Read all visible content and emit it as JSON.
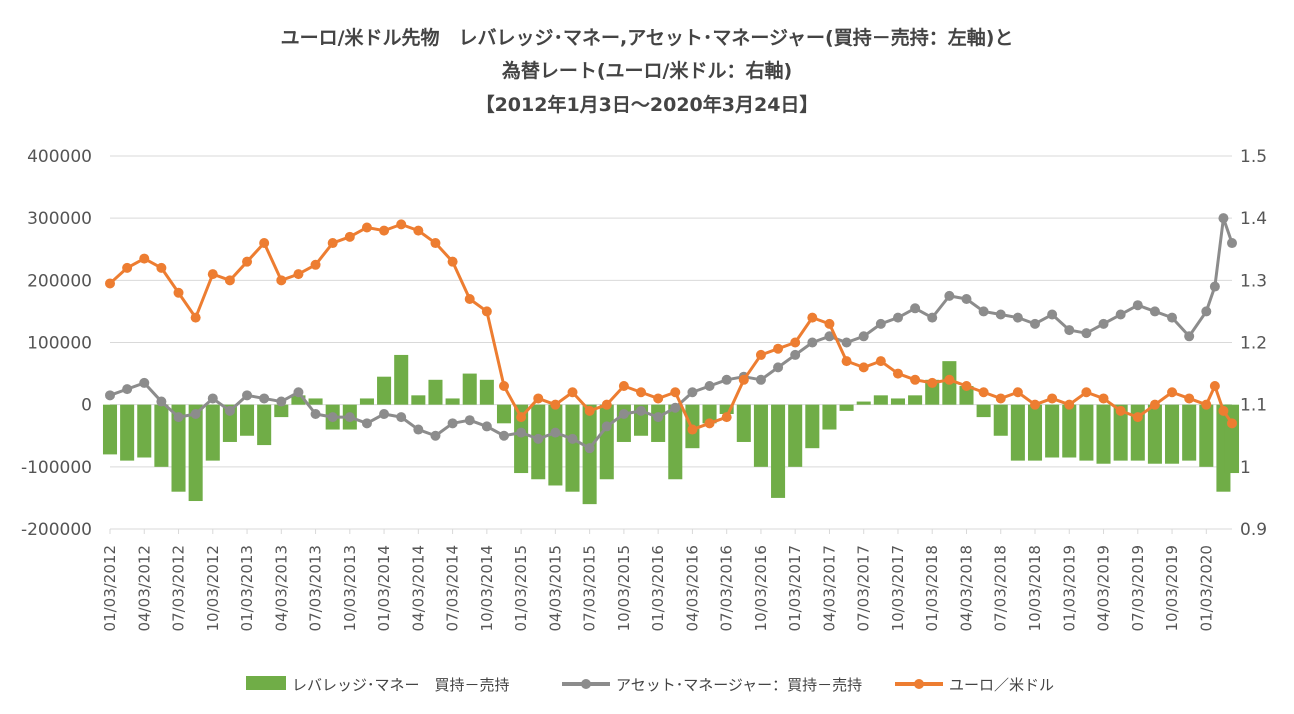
{
  "chart_data": {
    "type": "bar+line",
    "title_lines": [
      "ユーロ/米ドル先物　レバレッジ･マネー,アセット･マネージャー(買持－売持：左軸)と",
      "為替レート(ユーロ/米ドル：右軸)",
      "【2012年1月3日～2020年3月24日】"
    ],
    "y_left": {
      "min": -200000,
      "max": 400000,
      "ticks": [
        "400000",
        "300000",
        "200000",
        "100000",
        "0",
        "-100000",
        "-200000"
      ]
    },
    "y_right": {
      "min": 0.9,
      "max": 1.5,
      "ticks": [
        "1.5",
        "1.4",
        "1.3",
        "1.2",
        "1.1",
        "1",
        "0.9"
      ]
    },
    "x_ticks": [
      "01/03/2012",
      "04/03/2012",
      "07/03/2012",
      "10/03/2012",
      "01/03/2013",
      "04/03/2013",
      "07/03/2013",
      "10/03/2013",
      "01/03/2014",
      "04/03/2014",
      "07/03/2014",
      "10/03/2014",
      "01/03/2015",
      "04/03/2015",
      "07/03/2015",
      "10/03/2015",
      "01/03/2016",
      "04/03/2016",
      "07/03/2016",
      "10/03/2016",
      "01/03/2017",
      "04/03/2017",
      "07/03/2017",
      "10/03/2017",
      "01/03/2018",
      "04/03/2018",
      "07/03/2018",
      "10/03/2018",
      "01/03/2019",
      "04/03/2019",
      "07/03/2019",
      "10/03/2019",
      "01/03/2020"
    ],
    "x_range": [
      0,
      32.75
    ],
    "grid": "horizontal",
    "legend_position": "bottom",
    "series": [
      {
        "name": "レバレッジ･マネー　買持－売持",
        "kind": "bar",
        "axis": "left",
        "color": "#70AD47",
        "x": [
          0,
          0.5,
          1,
          1.5,
          2,
          2.5,
          3,
          3.5,
          4,
          4.5,
          5,
          5.5,
          6,
          6.5,
          7,
          7.5,
          8,
          8.5,
          9,
          9.5,
          10,
          10.5,
          11,
          11.5,
          12,
          12.5,
          13,
          13.5,
          14,
          14.5,
          15,
          15.5,
          16,
          16.5,
          17,
          17.5,
          18,
          18.5,
          19,
          19.5,
          20,
          20.5,
          21,
          21.5,
          22,
          22.5,
          23,
          23.5,
          24,
          24.5,
          25,
          25.5,
          26,
          26.5,
          27,
          27.5,
          28,
          28.5,
          29,
          29.5,
          30,
          30.5,
          31,
          31.5,
          32,
          32.5,
          32.75
        ],
        "values": [
          -80000,
          -90000,
          -85000,
          -100000,
          -140000,
          -155000,
          -90000,
          -60000,
          -50000,
          -65000,
          -20000,
          15000,
          10000,
          -40000,
          -40000,
          10000,
          45000,
          80000,
          15000,
          40000,
          10000,
          50000,
          40000,
          -30000,
          -110000,
          -120000,
          -130000,
          -140000,
          -160000,
          -120000,
          -60000,
          -50000,
          -60000,
          -120000,
          -70000,
          -30000,
          -15000,
          -60000,
          -100000,
          -150000,
          -100000,
          -70000,
          -40000,
          -10000,
          5000,
          15000,
          10000,
          15000,
          40000,
          70000,
          30000,
          -20000,
          -50000,
          -90000,
          -90000,
          -85000,
          -85000,
          -90000,
          -95000,
          -90000,
          -90000,
          -95000,
          -95000,
          -90000,
          -100000,
          -140000,
          -110000
        ]
      },
      {
        "name": "アセット･マネージャー：買持－売持",
        "kind": "line",
        "axis": "left",
        "color": "#8C8C8C",
        "x": [
          0,
          0.5,
          1,
          1.5,
          2,
          2.5,
          3,
          3.5,
          4,
          4.5,
          5,
          5.5,
          6,
          6.5,
          7,
          7.5,
          8,
          8.5,
          9,
          9.5,
          10,
          10.5,
          11,
          11.5,
          12,
          12.5,
          13,
          13.5,
          14,
          14.5,
          15,
          15.5,
          16,
          16.5,
          17,
          17.5,
          18,
          18.5,
          19,
          19.5,
          20,
          20.5,
          21,
          21.5,
          22,
          22.5,
          23,
          23.5,
          24,
          24.5,
          25,
          25.5,
          26,
          26.5,
          27,
          27.5,
          28,
          28.5,
          29,
          29.5,
          30,
          30.5,
          31,
          31.5,
          32,
          32.25,
          32.5,
          32.75
        ],
        "values": [
          15000,
          25000,
          35000,
          5000,
          -20000,
          -15000,
          10000,
          -10000,
          15000,
          10000,
          5000,
          20000,
          -15000,
          -20000,
          -20000,
          -30000,
          -15000,
          -20000,
          -40000,
          -50000,
          -30000,
          -25000,
          -35000,
          -50000,
          -45000,
          -55000,
          -45000,
          -55000,
          -70000,
          -35000,
          -15000,
          -10000,
          -20000,
          -5000,
          20000,
          30000,
          40000,
          45000,
          40000,
          60000,
          80000,
          100000,
          110000,
          100000,
          110000,
          130000,
          140000,
          155000,
          140000,
          175000,
          170000,
          150000,
          145000,
          140000,
          130000,
          145000,
          120000,
          115000,
          130000,
          145000,
          160000,
          150000,
          140000,
          110000,
          150000,
          190000,
          300000,
          260000
        ]
      },
      {
        "name": "ユーロ／米ドル",
        "kind": "line",
        "axis": "right",
        "color": "#ED7D31",
        "x": [
          0,
          0.5,
          1,
          1.5,
          2,
          2.5,
          3,
          3.5,
          4,
          4.5,
          5,
          5.5,
          6,
          6.5,
          7,
          7.5,
          8,
          8.5,
          9,
          9.5,
          10,
          10.5,
          11,
          11.5,
          12,
          12.5,
          13,
          13.5,
          14,
          14.5,
          15,
          15.5,
          16,
          16.5,
          17,
          17.5,
          18,
          18.5,
          19,
          19.5,
          20,
          20.5,
          21,
          21.5,
          22,
          22.5,
          23,
          23.5,
          24,
          24.5,
          25,
          25.5,
          26,
          26.5,
          27,
          27.5,
          28,
          28.5,
          29,
          29.5,
          30,
          30.5,
          31,
          31.5,
          32,
          32.25,
          32.5,
          32.75
        ],
        "values": [
          1.295,
          1.32,
          1.335,
          1.32,
          1.28,
          1.24,
          1.31,
          1.3,
          1.33,
          1.36,
          1.3,
          1.31,
          1.325,
          1.36,
          1.37,
          1.385,
          1.38,
          1.39,
          1.38,
          1.36,
          1.33,
          1.27,
          1.25,
          1.13,
          1.08,
          1.11,
          1.1,
          1.12,
          1.09,
          1.1,
          1.13,
          1.12,
          1.11,
          1.12,
          1.06,
          1.07,
          1.08,
          1.14,
          1.18,
          1.19,
          1.2,
          1.24,
          1.23,
          1.17,
          1.16,
          1.17,
          1.15,
          1.14,
          1.135,
          1.14,
          1.13,
          1.12,
          1.11,
          1.12,
          1.1,
          1.11,
          1.1,
          1.12,
          1.11,
          1.09,
          1.08,
          1.1,
          1.12,
          1.11,
          1.1,
          1.13,
          1.09,
          1.07
        ]
      }
    ]
  },
  "legend": {
    "items": [
      {
        "label": "レバレッジ･マネー　買持－売持",
        "kind": "bar",
        "color": "#70AD47"
      },
      {
        "label": "アセット･マネージャー：買持－売持",
        "kind": "line",
        "color": "#8C8C8C"
      },
      {
        "label": "ユーロ／米ドル",
        "kind": "line",
        "color": "#ED7D31"
      }
    ]
  }
}
